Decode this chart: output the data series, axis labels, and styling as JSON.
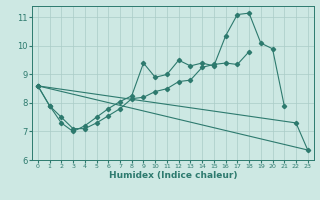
{
  "xlabel": "Humidex (Indice chaleur)",
  "ylabel": "",
  "xlim": [
    -0.5,
    23.5
  ],
  "ylim": [
    6.0,
    11.4
  ],
  "color": "#2d7a6e",
  "bg_color": "#cde8e3",
  "grid_color": "#aaccc7",
  "line1_y": [
    8.6,
    7.9,
    7.5,
    7.1,
    7.1,
    7.3,
    7.55,
    7.8,
    8.15,
    8.2,
    8.4,
    8.5,
    8.75,
    8.8,
    9.25,
    9.35,
    9.4,
    9.35,
    9.8,
    null,
    null,
    null,
    null,
    null
  ],
  "line2_y": [
    8.6,
    7.9,
    7.3,
    7.0,
    7.2,
    7.5,
    7.8,
    8.05,
    8.25,
    9.4,
    8.9,
    9.0,
    9.5,
    9.3,
    9.4,
    9.3,
    10.35,
    11.1,
    11.15,
    10.1,
    9.9,
    7.9,
    null,
    null
  ],
  "line3_y": [
    8.6,
    null,
    null,
    null,
    null,
    null,
    null,
    null,
    null,
    null,
    null,
    null,
    null,
    null,
    null,
    null,
    null,
    null,
    null,
    null,
    null,
    null,
    7.3,
    6.35
  ],
  "line4_y": [
    8.6,
    null,
    null,
    null,
    null,
    null,
    null,
    null,
    null,
    null,
    null,
    null,
    null,
    null,
    null,
    null,
    null,
    null,
    null,
    null,
    null,
    null,
    null,
    6.35
  ],
  "yticks": [
    6,
    7,
    8,
    9,
    10,
    11
  ],
  "xticks": [
    0,
    1,
    2,
    3,
    4,
    5,
    6,
    7,
    8,
    9,
    10,
    11,
    12,
    13,
    14,
    15,
    16,
    17,
    18,
    19,
    20,
    21,
    22,
    23
  ]
}
